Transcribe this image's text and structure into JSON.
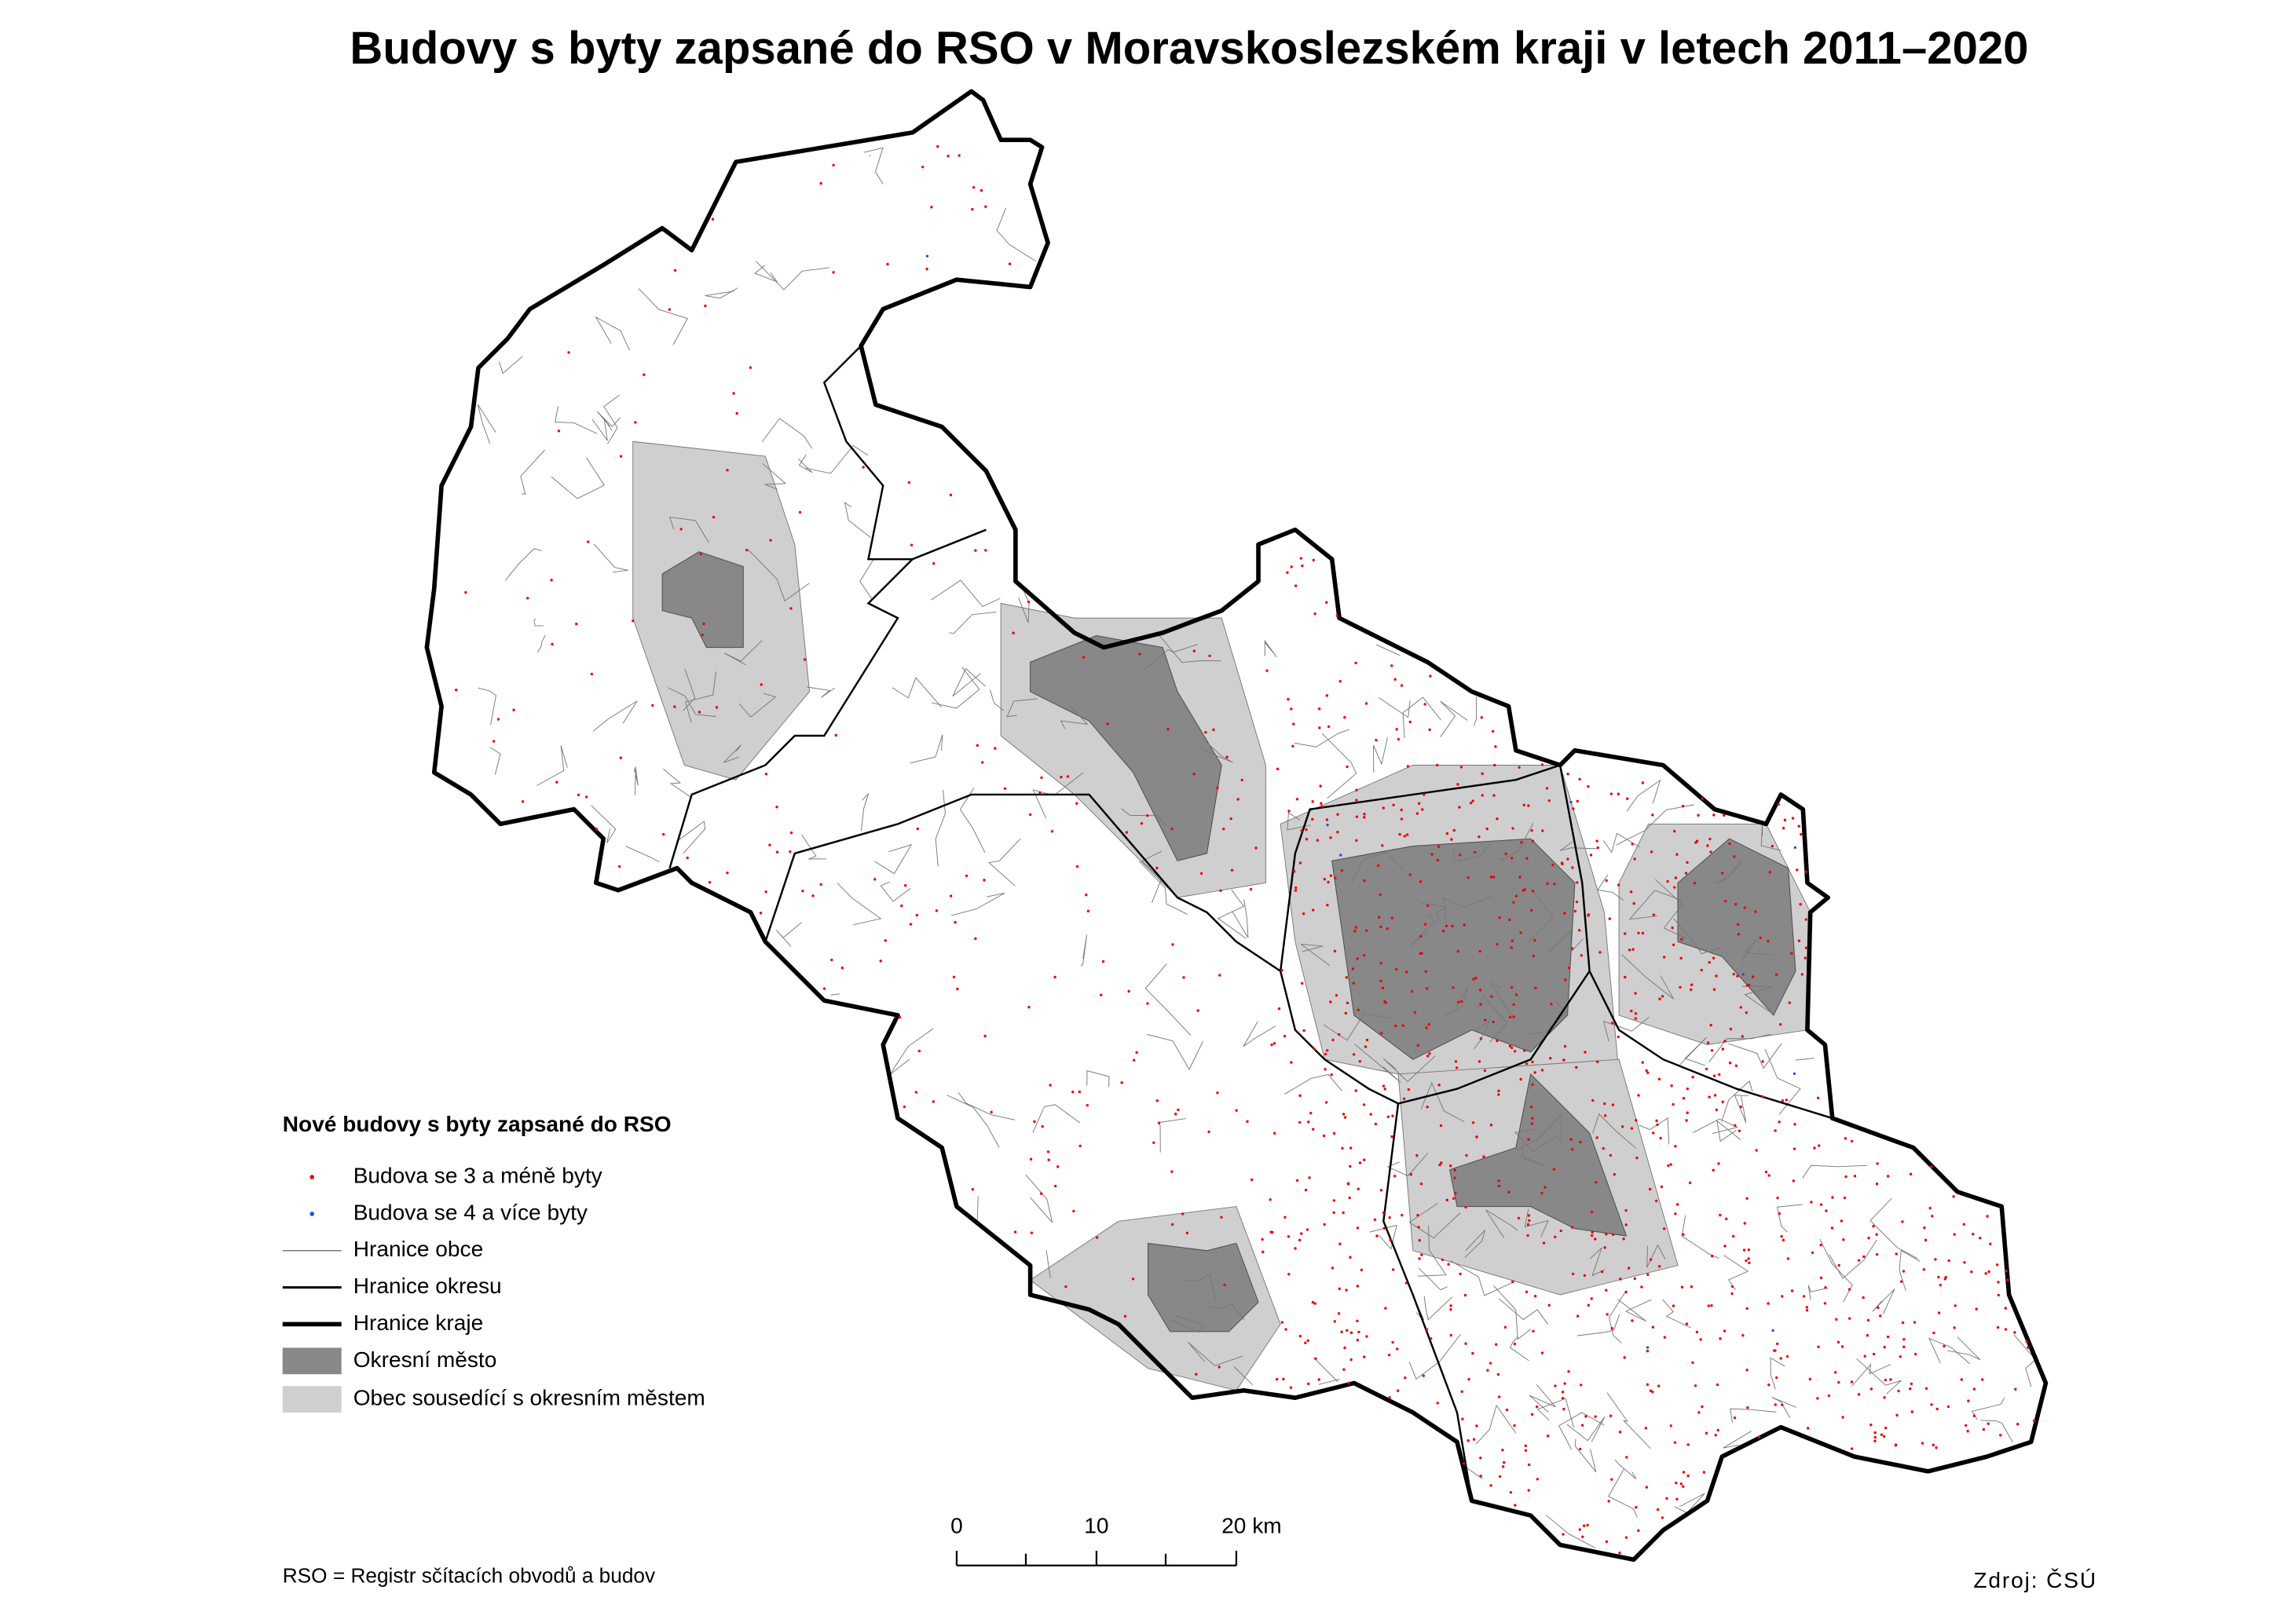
{
  "title": "Budovy s byty zapsané do RSO v Moravskoslezském kraji v letech 2011–2020",
  "legend": {
    "title": "Nové budovy s byty zapsané do RSO",
    "items": [
      "Budova se 3 a méně byty",
      "Budova se 4 a více byty",
      "Hranice obce",
      "Hranice okresu",
      "Hranice kraje",
      "Okresní město",
      "Obec sousedící s okresním městem"
    ]
  },
  "scale_bar": {
    "labels": [
      "0",
      "10",
      "20 km"
    ]
  },
  "footnote": "RSO = Registr sčítacích obvodů a budov",
  "source": "Zdroj: ČSÚ"
}
